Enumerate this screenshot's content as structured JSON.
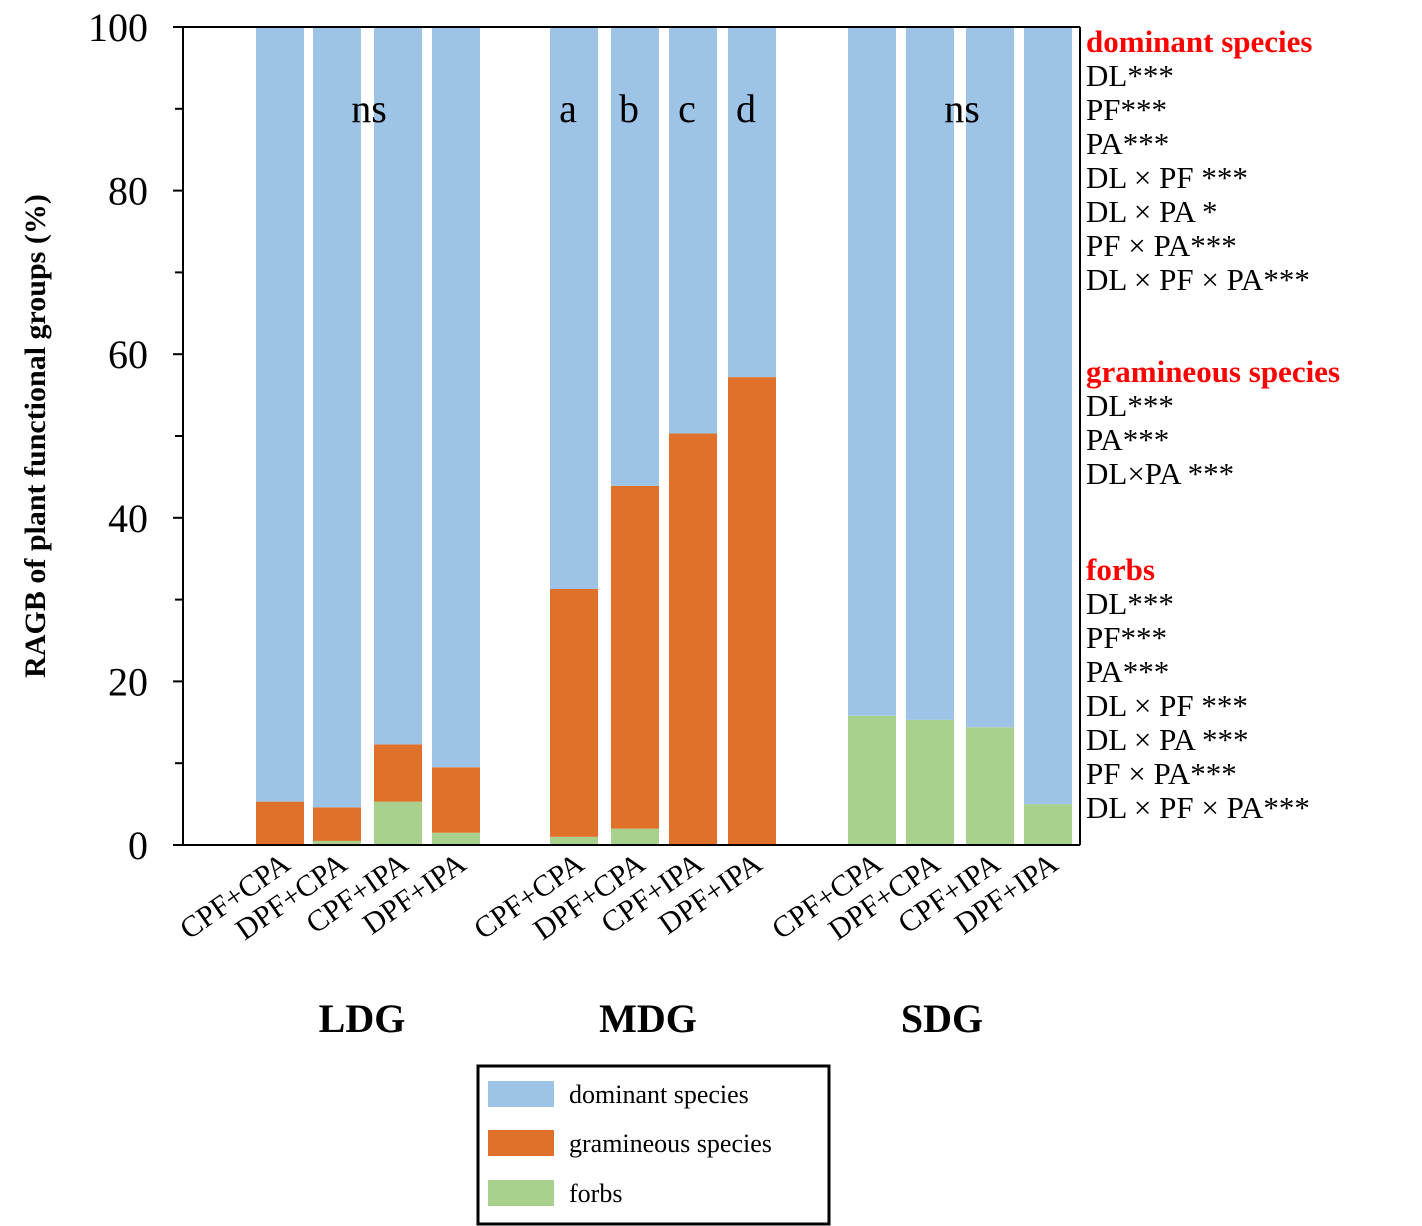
{
  "chart_data": {
    "type": "bar",
    "stacked": true,
    "ylabel": "RAGB of plant functional groups  (%)",
    "ylim": [
      0,
      100
    ],
    "yticks": [
      "0",
      "20",
      "40",
      "60",
      "80",
      "100"
    ],
    "categories": [
      "CPF+CPA",
      "DPF+CPA",
      "CPF+IPA",
      "DPF+IPA",
      "CPF+CPA",
      "DPF+CPA",
      "CPF+IPA",
      "DPF+IPA",
      "CPF+CPA",
      "DPF+CPA",
      "CPF+IPA",
      "DPF+IPA"
    ],
    "groups": [
      {
        "label": "LDG",
        "sig": [
          "ns"
        ]
      },
      {
        "label": "MDG",
        "sig": [
          "a",
          "b",
          "c",
          "d"
        ]
      },
      {
        "label": "SDG",
        "sig": [
          "ns"
        ]
      }
    ],
    "series": [
      {
        "name": "forbs",
        "color": "#a9d18e",
        "values": [
          0,
          0.5,
          5.3,
          1.5,
          1.0,
          2.0,
          0,
          0,
          15.8,
          15.3,
          14.4,
          5.0
        ]
      },
      {
        "name": "gramineous species",
        "color": "#e0712a",
        "values": [
          5.3,
          4.1,
          7.0,
          8.0,
          30.3,
          41.9,
          50.3,
          57.2,
          0,
          0,
          0,
          0
        ]
      },
      {
        "name": "dominant species",
        "color": "#9dc3e6",
        "values": [
          94.7,
          95.4,
          87.7,
          90.5,
          68.7,
          56.1,
          49.7,
          42.8,
          84.2,
          84.7,
          85.6,
          95.0
        ]
      }
    ],
    "legend": {
      "placement": "bottom",
      "entries": [
        "dominant species",
        "gramineous species",
        "forbs"
      ]
    },
    "stats": [
      {
        "head": "dominant species",
        "lines": [
          "DL***",
          "PF***",
          "PA***",
          "DL × PF ***",
          "DL × PA *",
          "PF × PA***",
          "DL × PF × PA***"
        ]
      },
      {
        "head": "gramineous species",
        "lines": [
          "DL***",
          "PA***",
          "DL×PA ***"
        ]
      },
      {
        "head": "forbs",
        "lines": [
          "DL***",
          "PF***",
          "PA***",
          "DL × PF ***",
          "DL × PA ***",
          "PF × PA***",
          "DL × PF × PA***"
        ]
      }
    ],
    "stat_head_color": "#ff0000"
  }
}
